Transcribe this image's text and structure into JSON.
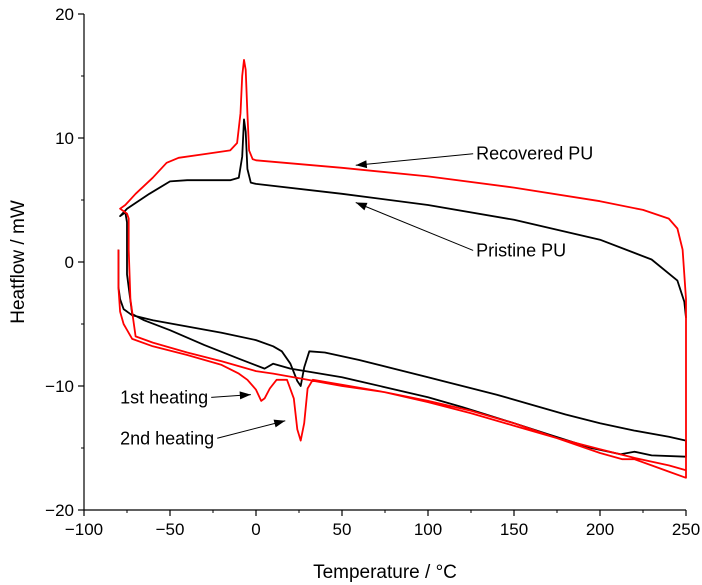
{
  "chart_data": {
    "type": "line",
    "title": "",
    "xlabel": "Temperature / °C",
    "ylabel": "Heatflow / mW",
    "xlim": [
      -100,
      250
    ],
    "ylim": [
      -20,
      20
    ],
    "x_ticks": [
      -100,
      -50,
      0,
      50,
      100,
      150,
      200,
      250
    ],
    "y_ticks": [
      -20,
      -10,
      0,
      10,
      20
    ],
    "x_tick_labels": [
      "−100",
      "−50",
      "0",
      "50",
      "100",
      "150",
      "200",
      "250"
    ],
    "y_tick_labels": [
      "−20",
      "−10",
      "0",
      "10",
      "20"
    ],
    "grid": false,
    "legend": "none",
    "series": [
      {
        "color": "#000000",
        "points": [
          [
            -80,
            1
          ],
          [
            -80,
            -2
          ],
          [
            -79,
            -3
          ],
          [
            -77,
            -3.8
          ],
          [
            -72,
            -4.3
          ],
          [
            -60,
            -4.7
          ],
          [
            -40,
            -5.2
          ],
          [
            -20,
            -5.7
          ],
          [
            0,
            -6.3
          ],
          [
            10,
            -6.8
          ],
          [
            15,
            -7.2
          ],
          [
            20,
            -8.2
          ],
          [
            24,
            -9.6
          ],
          [
            26,
            -10
          ],
          [
            28,
            -8.5
          ],
          [
            31,
            -7.2
          ],
          [
            40,
            -7.3
          ],
          [
            60,
            -7.9
          ],
          [
            80,
            -8.6
          ],
          [
            100,
            -9.3
          ],
          [
            120,
            -10
          ],
          [
            140,
            -10.7
          ],
          [
            160,
            -11.5
          ],
          [
            180,
            -12.3
          ],
          [
            200,
            -13
          ],
          [
            220,
            -13.6
          ],
          [
            240,
            -14.1
          ],
          [
            250,
            -14.4
          ],
          [
            250,
            -15.7
          ],
          [
            230,
            -15.6
          ],
          [
            220,
            -15.3
          ],
          [
            212,
            -15.5
          ],
          [
            195,
            -15
          ],
          [
            170,
            -13.9
          ],
          [
            150,
            -13
          ],
          [
            120,
            -11.7
          ],
          [
            100,
            -10.9
          ],
          [
            75,
            -10.1
          ],
          [
            50,
            -9.3
          ],
          [
            20,
            -8.6
          ],
          [
            10,
            -8.2
          ],
          [
            5,
            -8.6
          ],
          [
            -10,
            -7.8
          ],
          [
            -30,
            -6.7
          ],
          [
            -50,
            -5.5
          ],
          [
            -65,
            -4.7
          ],
          [
            -72,
            -4.2
          ],
          [
            -75,
            -1
          ],
          [
            -75,
            3.2
          ],
          [
            -76,
            4
          ],
          [
            -79,
            3.7
          ],
          [
            -75,
            4.3
          ],
          [
            -62,
            5.5
          ],
          [
            -50,
            6.5
          ],
          [
            -40,
            6.6
          ],
          [
            -15,
            6.6
          ],
          [
            -10,
            6.8
          ],
          [
            -8,
            8.5
          ],
          [
            -7,
            11.5
          ],
          [
            -6,
            10.5
          ],
          [
            -5,
            7.5
          ],
          [
            -3,
            6.4
          ],
          [
            0,
            6.3
          ],
          [
            50,
            5.5
          ],
          [
            100,
            4.6
          ],
          [
            150,
            3.4
          ],
          [
            200,
            1.8
          ],
          [
            230,
            0.2
          ],
          [
            245,
            -1.5
          ],
          [
            249,
            -3.2
          ],
          [
            250,
            -4.5
          ]
        ]
      },
      {
        "color": "#ff0000",
        "points": [
          [
            -80,
            1
          ],
          [
            -80,
            -2
          ],
          [
            -79,
            -4
          ],
          [
            -77,
            -5
          ],
          [
            -72,
            -6.2
          ],
          [
            -60,
            -6.8
          ],
          [
            -40,
            -7.5
          ],
          [
            -20,
            -8.3
          ],
          [
            -10,
            -9
          ],
          [
            -5,
            -9.5
          ],
          [
            0,
            -10.3
          ],
          [
            3,
            -11.2
          ],
          [
            5,
            -11
          ],
          [
            8,
            -10.2
          ],
          [
            12,
            -9.5
          ],
          [
            18,
            -9.5
          ],
          [
            22,
            -11
          ],
          [
            24,
            -13.5
          ],
          [
            26,
            -14.4
          ],
          [
            28,
            -13
          ],
          [
            30,
            -10.2
          ],
          [
            33,
            -9.5
          ],
          [
            50,
            -9.9
          ],
          [
            75,
            -10.5
          ],
          [
            100,
            -11.3
          ],
          [
            125,
            -12.2
          ],
          [
            150,
            -13.2
          ],
          [
            175,
            -14.2
          ],
          [
            200,
            -15.1
          ],
          [
            220,
            -15.8
          ],
          [
            240,
            -16.4
          ],
          [
            250,
            -16.8
          ],
          [
            250,
            -17.4
          ],
          [
            240,
            -16.9
          ],
          [
            230,
            -16.4
          ],
          [
            220,
            -15.9
          ],
          [
            213,
            -15.9
          ],
          [
            200,
            -15.4
          ],
          [
            175,
            -14.2
          ],
          [
            150,
            -13
          ],
          [
            125,
            -12
          ],
          [
            100,
            -11.2
          ],
          [
            75,
            -10.5
          ],
          [
            50,
            -10
          ],
          [
            30,
            -9.5
          ],
          [
            10,
            -9
          ],
          [
            0,
            -8.8
          ],
          [
            -20,
            -8
          ],
          [
            -40,
            -7.3
          ],
          [
            -60,
            -6.5
          ],
          [
            -70,
            -6
          ],
          [
            -73,
            -3
          ],
          [
            -74,
            1
          ],
          [
            -74,
            3.5
          ],
          [
            -75,
            3.9
          ],
          [
            -79,
            4.3
          ],
          [
            -76,
            4.6
          ],
          [
            -70,
            5.5
          ],
          [
            -60,
            6.8
          ],
          [
            -52,
            8
          ],
          [
            -45,
            8.4
          ],
          [
            -30,
            8.7
          ],
          [
            -15,
            9
          ],
          [
            -11,
            9.6
          ],
          [
            -9,
            12
          ],
          [
            -8,
            15
          ],
          [
            -7,
            16.3
          ],
          [
            -6,
            15.5
          ],
          [
            -5,
            12
          ],
          [
            -4,
            9
          ],
          [
            -2,
            8.3
          ],
          [
            0,
            8.2
          ],
          [
            50,
            7.6
          ],
          [
            100,
            6.9
          ],
          [
            150,
            6
          ],
          [
            200,
            4.9
          ],
          [
            225,
            4.2
          ],
          [
            240,
            3.5
          ],
          [
            245,
            2.7
          ],
          [
            248,
            1
          ],
          [
            250,
            -3
          ],
          [
            250,
            -10
          ],
          [
            250,
            -17.4
          ]
        ]
      }
    ],
    "annotations": [
      {
        "text": "Recovered PU",
        "x": 128,
        "y": 8.25,
        "arrow_tip": [
          58,
          7.8
        ]
      },
      {
        "text": "Pristine PU",
        "x": 128,
        "y": 0.45,
        "arrow_tip": [
          58,
          4.8
        ]
      },
      {
        "text": "1st heating",
        "x": -79,
        "y": -11.4,
        "arrow_tip": [
          -3,
          -10.7
        ]
      },
      {
        "text": "2nd heating",
        "x": -79,
        "y": -14.7,
        "arrow_tip": [
          17,
          -12.8
        ]
      }
    ]
  }
}
